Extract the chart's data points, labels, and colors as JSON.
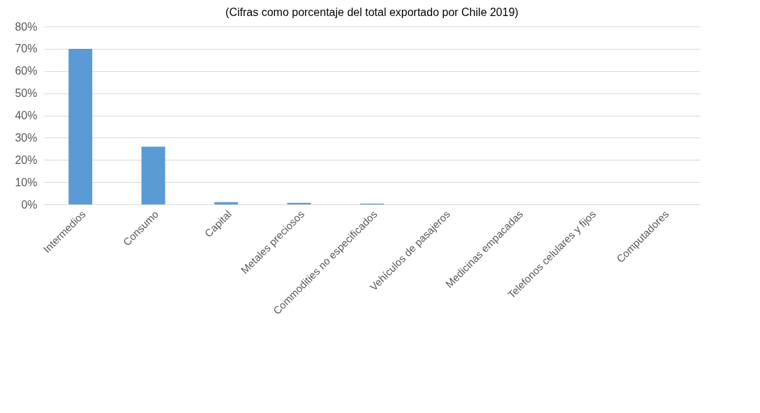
{
  "chart_data": {
    "type": "bar",
    "title": "(Cifras como porcentaje del total exportado por Chile 2019)",
    "categories": [
      "Intermedios",
      "Consumo",
      "Capital",
      "Metales preciosos",
      "Commodities no especificados",
      "Vehículos de pasajeros",
      "Medicinas empacadas",
      "Telefonos celulares y fijos",
      "Computadores"
    ],
    "values": [
      70,
      26,
      1,
      0.7,
      0.4,
      0,
      0,
      0,
      0
    ],
    "color": "#5b9bd5",
    "ylim": [
      0,
      80
    ],
    "yticks": [
      {
        "value": 0,
        "label": "0%"
      },
      {
        "value": 10,
        "label": "10%"
      },
      {
        "value": 20,
        "label": "20%"
      },
      {
        "value": 30,
        "label": "30%"
      },
      {
        "value": 40,
        "label": "40%"
      },
      {
        "value": 50,
        "label": "50%"
      },
      {
        "value": 60,
        "label": "60%"
      },
      {
        "value": 70,
        "label": "70%"
      },
      {
        "value": 80,
        "label": "80%"
      }
    ],
    "grid": "y"
  }
}
